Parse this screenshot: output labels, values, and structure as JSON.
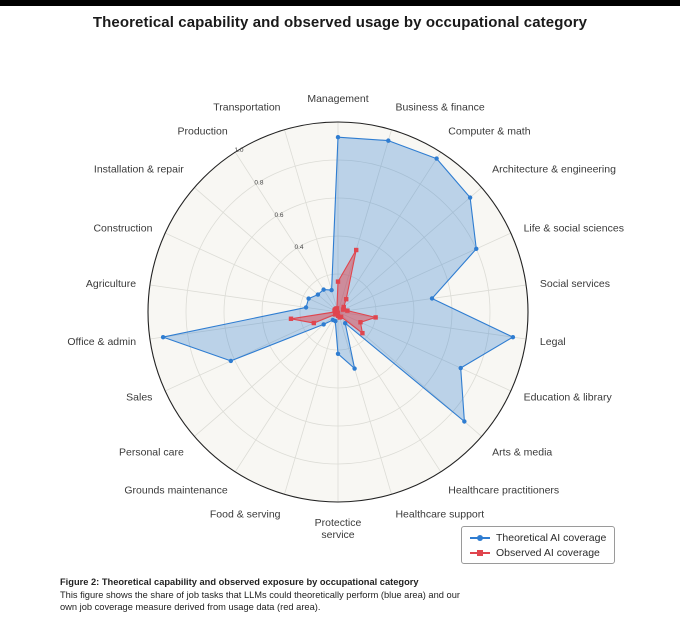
{
  "chart_data": {
    "type": "radar",
    "title": "Theoretical capability and observed usage by occupational category",
    "categories": [
      "Management",
      "Business & finance",
      "Computer & math",
      "Architecture & engineering",
      "Life & social sciences",
      "Social services",
      "Legal",
      "Education & library",
      "Arts & media",
      "Healthcare practitioners",
      "Healthcare support",
      "Protectice service",
      "Food & serving",
      "Grounds maintenance",
      "Personal care",
      "Sales",
      "Office & admin",
      "Agriculture",
      "Construction",
      "Installation & repair",
      "Production",
      "Transportation"
    ],
    "ticks": [
      "0.4",
      "0.6",
      "0.8",
      "1.0"
    ],
    "rlim": [
      0,
      1
    ],
    "series": [
      {
        "name": "Theoretical AI coverage",
        "color": "#2f7dd1",
        "values": [
          0.92,
          0.94,
          0.96,
          0.92,
          0.8,
          0.5,
          0.93,
          0.71,
          0.88,
          0.07,
          0.31,
          0.22,
          0.05,
          0.05,
          0.1,
          0.62,
          0.93,
          0.17,
          0.17,
          0.14,
          0.14,
          0.12
        ]
      },
      {
        "name": "Observed AI coverage",
        "color": "#e0454e",
        "values": [
          0.16,
          0.34,
          0.08,
          0.04,
          0.03,
          0.05,
          0.2,
          0.13,
          0.17,
          0.03,
          0.03,
          0.02,
          0.01,
          0.01,
          0.02,
          0.14,
          0.25,
          0.01,
          0.02,
          0.02,
          0.02,
          0.02
        ]
      }
    ],
    "grid": true,
    "legend_position": "bottom-right"
  },
  "legend": {
    "theoretical": "Theoretical AI coverage",
    "observed": "Observed AI coverage"
  },
  "caption": {
    "title": "Figure 2: Theoretical capability and observed exposure by occupational category",
    "body": "This figure shows the share of job tasks that LLMs could theoretically perform (blue area) and our own job coverage measure derived from usage data (red area)."
  }
}
